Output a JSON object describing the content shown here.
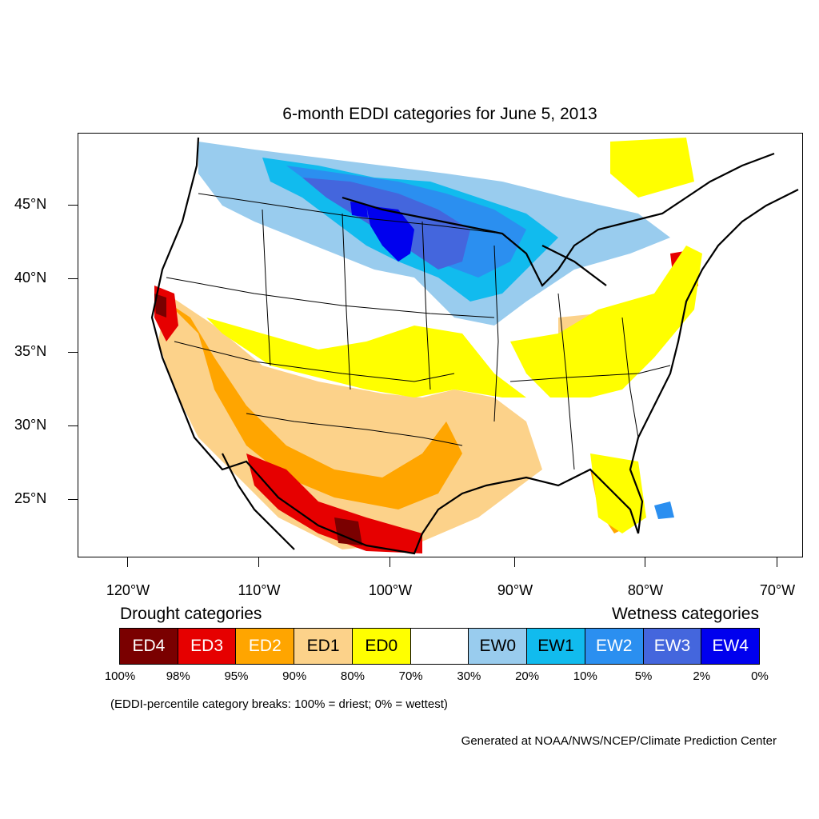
{
  "title": "6-month EDDI categories for June 5, 2013",
  "map": {
    "lat_labels": [
      "45°N",
      "40°N",
      "35°N",
      "30°N",
      "25°N"
    ],
    "lon_labels": [
      "120°W",
      "110°W",
      "100°W",
      "90°W",
      "80°W",
      "70°W"
    ]
  },
  "legend": {
    "drought_title": "Drought categories",
    "wetness_title": "Wetness categories",
    "categories": [
      {
        "label": "ED4",
        "color": "#7a0000",
        "text_color": "#ffffff"
      },
      {
        "label": "ED3",
        "color": "#e60000",
        "text_color": "#ffffff"
      },
      {
        "label": "ED2",
        "color": "#ffa500",
        "text_color": "#ffffff"
      },
      {
        "label": "ED1",
        "color": "#fcd28a",
        "text_color": "#000000"
      },
      {
        "label": "ED0",
        "color": "#ffff00",
        "text_color": "#000000"
      },
      {
        "label": "",
        "color": "#ffffff",
        "text_color": "#000000"
      },
      {
        "label": "EW0",
        "color": "#99ccee",
        "text_color": "#000000"
      },
      {
        "label": "EW1",
        "color": "#11bbee",
        "text_color": "#000000"
      },
      {
        "label": "EW2",
        "color": "#2b8ff0",
        "text_color": "#ffffff"
      },
      {
        "label": "EW3",
        "color": "#4466dd",
        "text_color": "#ffffff"
      },
      {
        "label": "EW4",
        "color": "#0000ee",
        "text_color": "#ffffff"
      }
    ],
    "breaks": [
      "100%",
      "98%",
      "95%",
      "90%",
      "80%",
      "70%",
      "30%",
      "20%",
      "10%",
      "5%",
      "2%",
      "0%"
    ]
  },
  "note": "(EDDI-percentile category breaks: 100% = driest; 0% = wettest)",
  "credit": "Generated at NOAA/NWS/NCEP/Climate Prediction Center"
}
